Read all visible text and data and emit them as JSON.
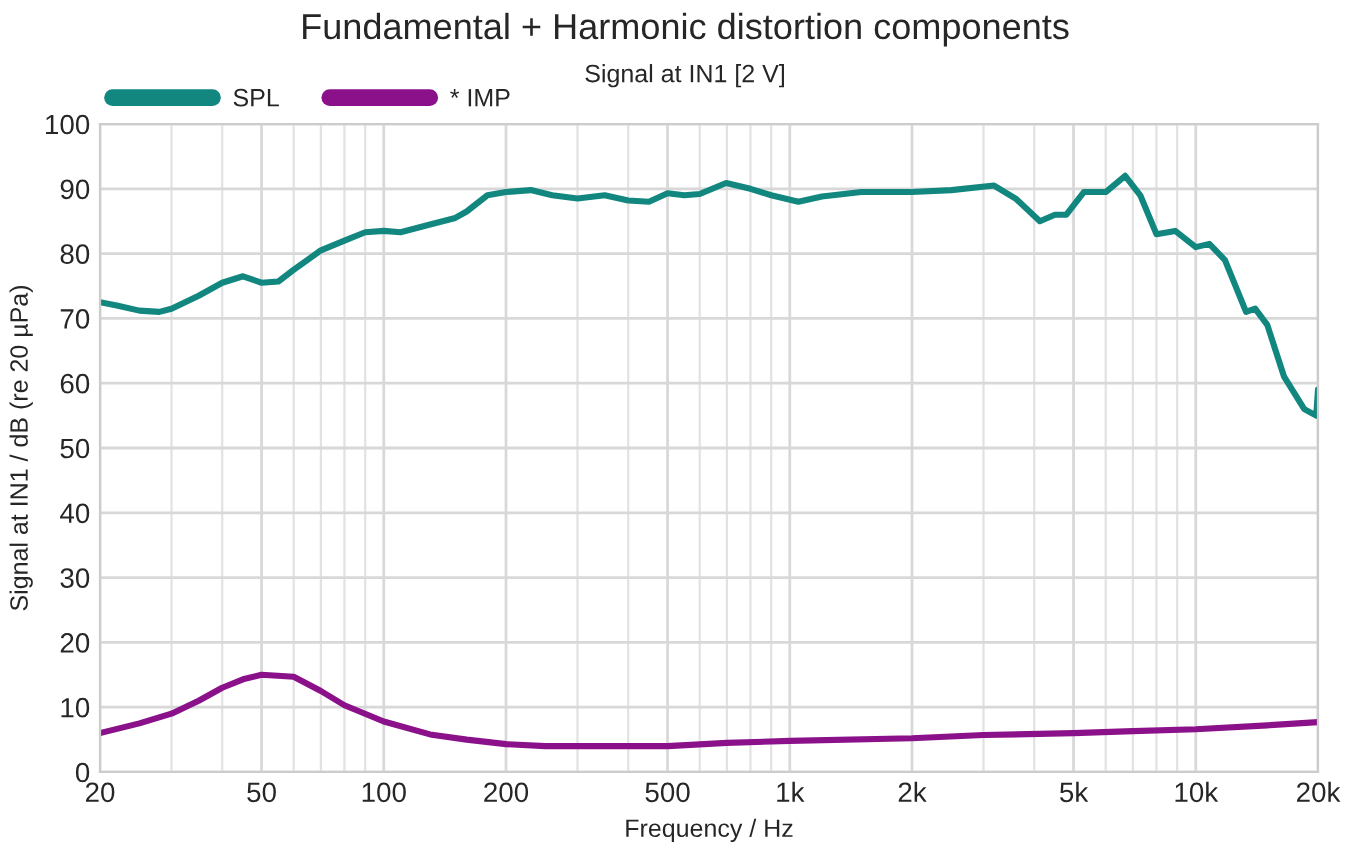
{
  "chart_data": {
    "type": "line",
    "title": "Fundamental + Harmonic distortion components",
    "subtitle": "Signal at IN1 [2 V]",
    "xlabel": "Frequency / Hz",
    "ylabel": "Signal at IN1 / dB (re 20 µPa)",
    "log": "x",
    "grid": true,
    "legend": "top left",
    "line_style": "solid",
    "marker": "none",
    "xlim": [
      20,
      20000
    ],
    "ylim": [
      0,
      100
    ],
    "xticks": [
      20,
      50,
      100,
      200,
      500,
      {
        "value": 1000,
        "label": "1k"
      },
      {
        "value": 2000,
        "label": "2k"
      },
      {
        "value": 5000,
        "label": "5k"
      },
      {
        "value": 10000,
        "label": "10k"
      },
      {
        "value": 20000,
        "label": "20k"
      }
    ],
    "yticks": [
      0,
      10,
      20,
      30,
      40,
      50,
      60,
      70,
      80,
      90,
      100
    ],
    "series": [
      {
        "name": "SPL",
        "color": "#11877f",
        "x": [
          20,
          22,
          25,
          28,
          30,
          35,
          40,
          45,
          50,
          55,
          60,
          70,
          80,
          90,
          100,
          110,
          130,
          150,
          160,
          180,
          200,
          230,
          260,
          300,
          350,
          400,
          450,
          500,
          550,
          600,
          697,
          800,
          900,
          1050,
          1200,
          1500,
          2000,
          2500,
          3185,
          3600,
          4130,
          4500,
          4800,
          5300,
          6000,
          6700,
          7300,
          8000,
          8900,
          10000,
          10800,
          11800,
          13300,
          14000,
          15000,
          16500,
          18500,
          19800,
          20000
        ],
        "values": [
          72.5,
          72,
          71.2,
          71,
          71.5,
          73.5,
          75.5,
          76.5,
          75.5,
          75.7,
          77.5,
          80.5,
          82,
          83.3,
          83.5,
          83.3,
          84.5,
          85.5,
          86.5,
          89,
          89.5,
          89.8,
          89,
          88.5,
          89,
          88.2,
          88,
          89.3,
          89,
          89.2,
          90.9,
          90,
          89,
          88,
          88.8,
          89.5,
          89.5,
          89.8,
          90.5,
          88.5,
          85,
          86,
          86,
          89.5,
          89.5,
          92,
          89,
          83,
          83.5,
          81,
          81.5,
          79,
          71,
          71.5,
          69,
          61,
          56,
          55,
          59
        ]
      },
      {
        "name": "* IMP",
        "color": "#8b118b",
        "x": [
          20,
          25,
          30,
          35,
          40,
          45,
          50,
          60,
          70,
          80,
          100,
          130,
          160,
          200,
          250,
          500,
          700,
          1000,
          2000,
          3000,
          5000,
          7000,
          10000,
          15000,
          20000
        ],
        "values": [
          6,
          7.5,
          9,
          11,
          13,
          14.3,
          15,
          14.7,
          12.5,
          10.3,
          7.8,
          5.8,
          5,
          4.3,
          4,
          4,
          4.5,
          4.8,
          5.2,
          5.7,
          6,
          6.3,
          6.6,
          7.2,
          7.7
        ]
      }
    ]
  }
}
